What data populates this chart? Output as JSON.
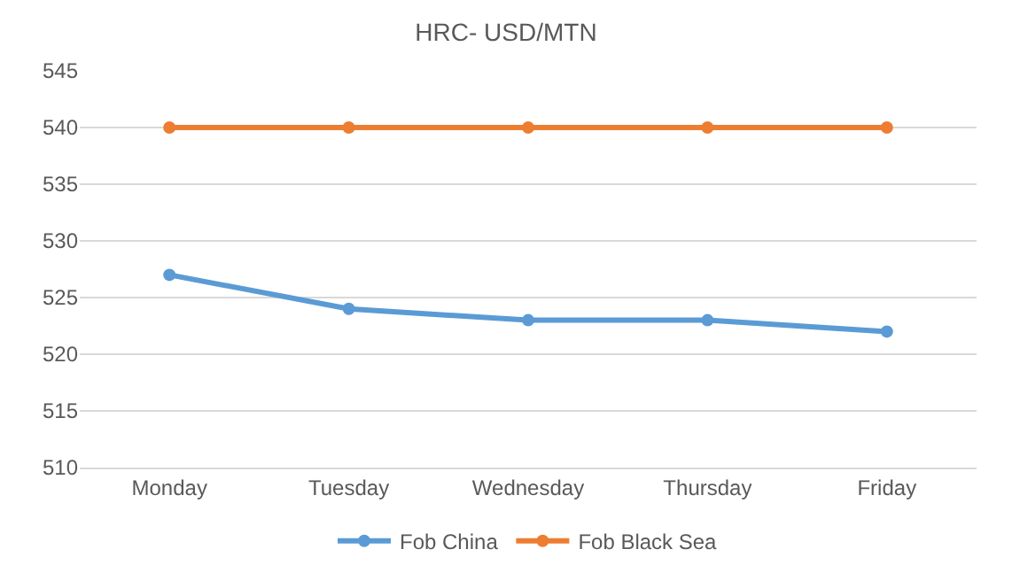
{
  "chart_data": {
    "type": "line",
    "title": "HRC- USD/MTN",
    "categories": [
      "Monday",
      "Tuesday",
      "Wednesday",
      "Thursday",
      "Friday"
    ],
    "series": [
      {
        "name": "Fob China",
        "color": "#5b9bd5",
        "values": [
          527,
          524,
          523,
          523,
          522
        ]
      },
      {
        "name": "Fob Black Sea",
        "color": "#ed7d31",
        "values": [
          540,
          540,
          540,
          540,
          540
        ]
      }
    ],
    "ylim": [
      510,
      545
    ],
    "yticks": [
      510,
      515,
      520,
      525,
      530,
      535,
      540,
      545
    ],
    "grid": "y",
    "legend": "bottom",
    "marker": "circle",
    "line_style": "solid"
  }
}
